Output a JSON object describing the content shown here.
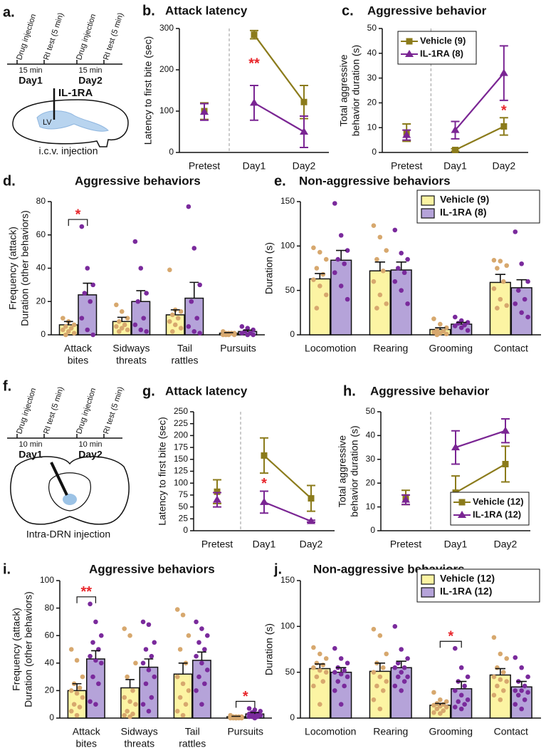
{
  "diagrams": [
    {
      "panel_label": "a.",
      "timeline_labels": [
        "Drug injection",
        "RI test (5 min)",
        "Drug injection",
        "RI test (5 min)"
      ],
      "intervals": [
        "15 min",
        "15 min"
      ],
      "days": [
        "Day1",
        "Day2"
      ],
      "drug": "IL-1RA",
      "region": "LV",
      "caption": "i.c.v. injection"
    },
    {
      "panel_label": "f.",
      "timeline_labels": [
        "Drug injection",
        "RI test (5 min)",
        "Drug injection",
        "RI test (5 min)"
      ],
      "intervals": [
        "10 min",
        "10 min"
      ],
      "days": [
        "Day1",
        "Day2"
      ],
      "caption": "Intra-DRN injection"
    }
  ],
  "chart_data": [
    {
      "type": "line",
      "panel_label": "b.",
      "title": "Attack latency",
      "ylabel": "Latency to first bite (sec)",
      "categories": [
        "Pretest",
        "Day1",
        "Day2"
      ],
      "divider_after": 0,
      "ylim": [
        0,
        300
      ],
      "yticks": [
        0,
        100,
        200,
        300
      ],
      "series": [
        {
          "color": "#8b7b1b",
          "marker": "square",
          "values": [
            100,
            285,
            122
          ],
          "errors": [
            20,
            10,
            40
          ]
        },
        {
          "color": "#7a2593",
          "marker": "triangle",
          "values": [
            98,
            120,
            50
          ],
          "errors": [
            20,
            42,
            38
          ]
        }
      ],
      "significance": [
        null,
        "**",
        null
      ],
      "significance_color": "#e8262b"
    },
    {
      "type": "line",
      "panel_label": "c.",
      "title": "Aggressive behavior",
      "ylabel": [
        "Total aggressive",
        "behavior duration (s)"
      ],
      "categories": [
        "Pretest",
        "Day1",
        "Day2"
      ],
      "divider_after": 0,
      "ylim": [
        0,
        50
      ],
      "yticks": [
        0,
        10,
        20,
        30,
        40,
        50
      ],
      "series": [
        {
          "name": "Vehicle (9)",
          "color": "#8b7b1b",
          "marker": "square",
          "values": [
            8,
            1,
            10.5
          ],
          "errors": [
            3.5,
            0.5,
            3.5
          ]
        },
        {
          "name": "IL-1RA (8)",
          "color": "#7a2593",
          "marker": "triangle",
          "values": [
            7,
            9,
            32
          ],
          "errors": [
            2,
            3.5,
            11
          ]
        }
      ],
      "legend": "upper left",
      "significance": [
        null,
        null,
        "*"
      ],
      "significance_color": "#e8262b"
    },
    {
      "type": "bar",
      "panel_label": "d.",
      "title": "Aggressive behaviors",
      "ylabel": [
        "Frequency (attack)",
        "Duration (other behaviors)"
      ],
      "categories": [
        [
          "Attack",
          "bites"
        ],
        [
          "Sidways",
          "threats"
        ],
        [
          "Tail",
          "rattles"
        ],
        [
          "Pursuits"
        ]
      ],
      "ylim": [
        0,
        80
      ],
      "yticks": [
        0,
        20,
        40,
        60,
        80
      ],
      "series": [
        {
          "color": "#fcf4a3",
          "point_color": "#d7a86e",
          "values": [
            6,
            8,
            12,
            1
          ],
          "errors": [
            2,
            2.5,
            3,
            0.3
          ],
          "points": [
            [
              10,
              8,
              6,
              5,
              4,
              3,
              2,
              1,
              0
            ],
            [
              18,
              14,
              10,
              8,
              6,
              5,
              4,
              3,
              2
            ],
            [
              39,
              15,
              14,
              12,
              10,
              8,
              6,
              4,
              2
            ],
            [
              2,
              1,
              1,
              1,
              1,
              0,
              0,
              0,
              0
            ]
          ]
        },
        {
          "color": "#b5a3d9",
          "point_color": "#7a2a9c",
          "values": [
            24,
            20,
            22,
            2
          ],
          "errors": [
            7,
            6.5,
            9.5,
            0.8
          ],
          "points": [
            [
              65,
              40,
              30,
              25,
              20,
              10,
              3,
              0
            ],
            [
              56,
              40,
              25,
              20,
              10,
              6,
              3,
              2
            ],
            [
              77,
              52,
              30,
              20,
              10,
              5,
              2,
              1
            ],
            [
              5,
              4,
              3,
              2,
              1,
              1,
              0,
              0
            ]
          ]
        }
      ],
      "significance": [
        "*",
        null,
        null,
        null
      ],
      "bracket": true,
      "significance_color": "#e8262b"
    },
    {
      "type": "bar",
      "panel_label": "e.",
      "title": "Non-aggressive behaviors",
      "ylabel": "Duration (s)",
      "categories": [
        "Locomotion",
        "Rearing",
        "Grooming",
        "Contact"
      ],
      "ylim": [
        0,
        150
      ],
      "yticks": [
        0,
        50,
        100,
        150
      ],
      "series": [
        {
          "name": "Vehicle (9)",
          "color": "#fcf4a3",
          "point_color": "#d7a86e",
          "values": [
            63,
            72,
            6,
            59
          ],
          "errors": [
            6,
            10,
            2,
            9
          ],
          "points": [
            [
              98,
              93,
              85,
              75,
              68,
              62,
              55,
              45,
              30
            ],
            [
              123,
              110,
              95,
              85,
              72,
              60,
              45,
              35,
              30
            ],
            [
              18,
              12,
              8,
              5,
              4,
              3,
              2,
              1,
              0
            ],
            [
              84,
              83,
              78,
              75,
              60,
              52,
              40,
              33,
              30
            ]
          ]
        },
        {
          "name": "IL-1RA  (8)",
          "color": "#b5a3d9",
          "point_color": "#7a2a9c",
          "values": [
            84,
            73,
            12,
            53
          ],
          "errors": [
            11,
            9,
            2,
            9
          ],
          "points": [
            [
              148,
              112,
              95,
              85,
              80,
              70,
              55,
              40
            ],
            [
              118,
              92,
              85,
              75,
              70,
              60,
              50,
              35
            ],
            [
              20,
              16,
              14,
              13,
              11,
              10,
              8,
              5
            ],
            [
              116,
              80,
              60,
              50,
              40,
              35,
              25,
              20
            ]
          ]
        }
      ],
      "legend": "upper right"
    },
    {
      "type": "line",
      "panel_label": "g.",
      "title": "Attack latency",
      "ylabel": "Latency to first bite (sec)",
      "categories": [
        "Pretest",
        "Day1",
        "Day2"
      ],
      "divider_after": 0,
      "ylim": [
        0,
        250
      ],
      "yticks": [
        0,
        25,
        50,
        75,
        100,
        125,
        150,
        175,
        200,
        225,
        250
      ],
      "series": [
        {
          "color": "#8b7b1b",
          "marker": "square",
          "values": [
            82,
            158,
            68
          ],
          "errors": [
            25,
            37,
            27
          ]
        },
        {
          "color": "#7a2593",
          "marker": "triangle",
          "values": [
            65,
            60,
            20
          ],
          "errors": [
            15,
            23,
            2
          ]
        }
      ],
      "significance": [
        null,
        "*",
        null
      ],
      "significance_color": "#e8262b"
    },
    {
      "type": "line",
      "panel_label": "h.",
      "title": "Aggressive behavior",
      "ylabel": [
        "Total aggressive",
        "behavior duration (s)"
      ],
      "categories": [
        "Pretest",
        "Day1",
        "Day2"
      ],
      "divider_after": 0,
      "ylim": [
        0,
        50
      ],
      "yticks": [
        0,
        10,
        20,
        30,
        40,
        50
      ],
      "series": [
        {
          "name": "Vehicle (12)",
          "color": "#8b7b1b",
          "marker": "square",
          "values": [
            14,
            16,
            28
          ],
          "errors": [
            3,
            7,
            7.5
          ]
        },
        {
          "name": "IL-1RA (12)",
          "color": "#7a2593",
          "marker": "triangle",
          "values": [
            13,
            35,
            42
          ],
          "errors": [
            2,
            7,
            5
          ]
        }
      ],
      "legend": "lower right"
    },
    {
      "type": "bar",
      "panel_label": "i.",
      "title": "Aggressive behaviors",
      "ylabel": [
        "Frequency (attack)",
        "Duration (other behaviors)"
      ],
      "categories": [
        [
          "Attack",
          "bites"
        ],
        [
          "Sidways",
          "threats"
        ],
        [
          "Tail",
          "rattles"
        ],
        [
          "Pursuits"
        ]
      ],
      "ylim": [
        0,
        100
      ],
      "yticks": [
        0,
        20,
        40,
        60,
        80,
        100
      ],
      "series": [
        {
          "color": "#fcf4a3",
          "point_color": "#d7a86e",
          "values": [
            20,
            22,
            32,
            1
          ],
          "errors": [
            5,
            6,
            8,
            0.3
          ],
          "points": [
            [
              50,
              42,
              30,
              25,
              22,
              20,
              18,
              15,
              10,
              8,
              5,
              2
            ],
            [
              65,
              60,
              40,
              30,
              20,
              15,
              12,
              10,
              5,
              3,
              2,
              1
            ],
            [
              79,
              75,
              60,
              50,
              40,
              30,
              25,
              20,
              15,
              10,
              5,
              2
            ],
            [
              2,
              1,
              1,
              1,
              1,
              1,
              0,
              0,
              0,
              0,
              0,
              0
            ]
          ]
        },
        {
          "color": "#b5a3d9",
          "point_color": "#7a2a9c",
          "values": [
            43,
            37,
            42,
            3
          ],
          "errors": [
            6,
            6,
            6,
            1
          ],
          "points": [
            [
              83,
              70,
              60,
              55,
              50,
              45,
              42,
              40,
              30,
              25,
              12,
              10
            ],
            [
              70,
              68,
              55,
              50,
              45,
              40,
              35,
              30,
              25,
              15,
              10,
              5
            ],
            [
              70,
              65,
              60,
              55,
              50,
              45,
              40,
              35,
              30,
              25,
              20,
              10
            ],
            [
              7,
              6,
              5,
              4,
              3,
              3,
              2,
              2,
              1,
              1,
              1,
              0
            ]
          ]
        }
      ],
      "significance": [
        "**",
        null,
        null,
        "*"
      ],
      "bracket": true,
      "significance_color": "#e8262b"
    },
    {
      "type": "bar",
      "panel_label": "j.",
      "title": "Non-aggressive behaviors",
      "ylabel": "Duration (s)",
      "categories": [
        "Locomotion",
        "Rearing",
        "Grooming",
        "Contact"
      ],
      "ylim": [
        0,
        150
      ],
      "yticks": [
        0,
        50,
        100,
        150
      ],
      "series": [
        {
          "name": "Vehicle (12)",
          "color": "#fcf4a3",
          "point_color": "#d7a86e",
          "values": [
            54,
            51,
            14,
            47
          ],
          "errors": [
            5,
            9,
            2,
            7
          ],
          "points": [
            [
              77,
              70,
              65,
              60,
              58,
              55,
              52,
              50,
              45,
              40,
              35,
              15
            ],
            [
              97,
              90,
              70,
              60,
              55,
              50,
              45,
              40,
              35,
              30,
              20,
              10
            ],
            [
              28,
              20,
              18,
              16,
              15,
              14,
              13,
              12,
              10,
              8,
              6,
              5
            ],
            [
              88,
              70,
              65,
              55,
              50,
              45,
              42,
              40,
              35,
              30,
              25,
              20
            ]
          ]
        },
        {
          "name": "IL-1RA  (12)",
          "color": "#b5a3d9",
          "point_color": "#7a2a9c",
          "values": [
            50,
            55,
            32,
            34
          ],
          "errors": [
            5,
            7,
            8,
            6
          ],
          "points": [
            [
              76,
              65,
              60,
              55,
              52,
              50,
              48,
              45,
              40,
              35,
              30,
              15
            ],
            [
              100,
              75,
              65,
              60,
              55,
              55,
              50,
              45,
              45,
              40,
              35,
              30
            ],
            [
              76,
              55,
              45,
              40,
              35,
              30,
              25,
              20,
              18,
              15,
              12,
              10
            ],
            [
              66,
              55,
              45,
              40,
              35,
              30,
              30,
              28,
              25,
              20,
              15,
              10
            ]
          ]
        }
      ],
      "legend": "upper right",
      "significance": [
        null,
        null,
        "*",
        null
      ],
      "bracket": true,
      "significance_color": "#e8262b"
    }
  ]
}
